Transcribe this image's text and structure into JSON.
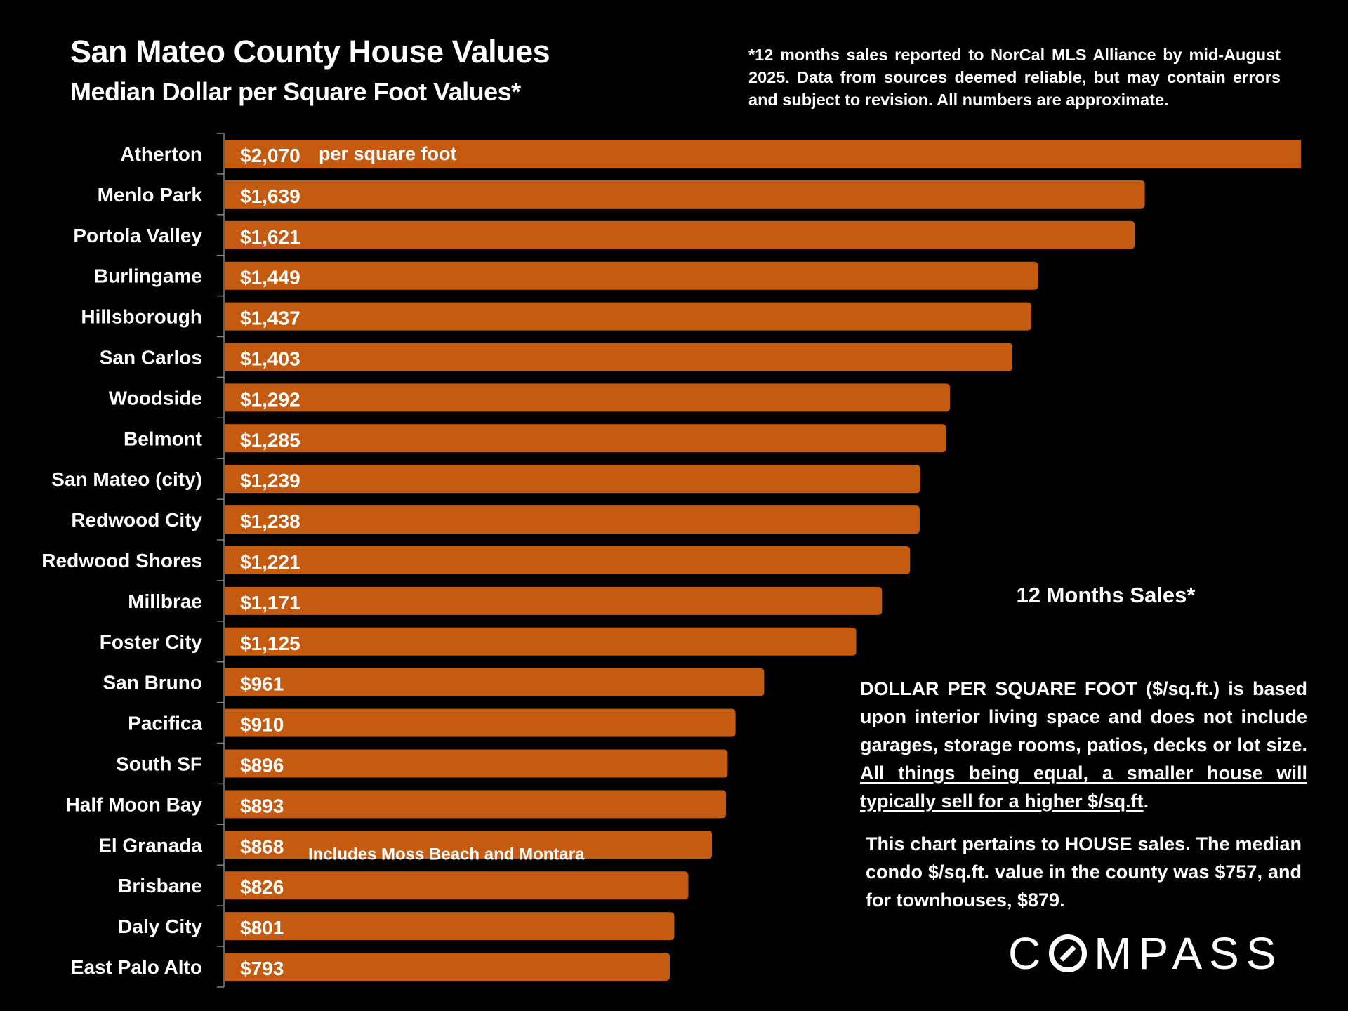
{
  "header": {
    "title": "San Mateo County House Values",
    "subtitle": "Median Dollar per Square Foot Values*",
    "footnote": "*12 months sales reported to NorCal MLS Alliance by mid-August 2025. Data from sources deemed reliable, but may contain errors and subject to revision. All numbers are approximate."
  },
  "colors": {
    "background": "#000000",
    "bar": "#C55A11",
    "axis": "#7F7F7F",
    "text": "#FFFFFF"
  },
  "chart_data": {
    "type": "bar",
    "orientation": "horizontal",
    "title": "San Mateo County House Values",
    "subtitle": "Median Dollar per Square Foot Values*",
    "xlabel": "",
    "ylabel": "",
    "grid": false,
    "unit": "$ per square foot",
    "categories": [
      "Atherton",
      "Menlo Park",
      "Portola Valley",
      "Burlingame",
      "Hillsborough",
      "San Carlos",
      "Woodside",
      "Belmont",
      "San Mateo (city)",
      "Redwood City",
      "Redwood Shores",
      "Millbrae",
      "Foster City",
      "San Bruno",
      "Pacifica",
      "South SF",
      "Half Moon Bay",
      "El Granada",
      "Brisbane",
      "Daly City",
      "East Palo Alto"
    ],
    "values": [
      2070,
      1639,
      1621,
      1449,
      1437,
      1403,
      1292,
      1285,
      1239,
      1238,
      1221,
      1171,
      1125,
      961,
      910,
      896,
      893,
      868,
      826,
      801,
      793
    ],
    "value_labels": [
      "$2,070",
      "$1,639",
      "$1,621",
      "$1,449",
      "$1,437",
      "$1,403",
      "$1,292",
      "$1,285",
      "$1,239",
      "$1,238",
      "$1,221",
      "$1,171",
      "$1,125",
      "$961",
      "$910",
      "$896",
      "$893",
      "$868",
      "$826",
      "$801",
      "$793"
    ],
    "xlim": [
      0,
      1900
    ],
    "truncated_bar": "Atherton",
    "annotations": [
      {
        "category": "Atherton",
        "text": "per square foot"
      },
      {
        "category": "El Granada",
        "text": "Includes Moss Beach and Montara"
      }
    ]
  },
  "side_panel": {
    "heading": "12 Months Sales*",
    "definition_plain": "DOLLAR PER SQUARE FOOT ($/sq.ft.) is based upon interior living space and does not include garages, storage rooms, patios, decks or lot size. ",
    "definition_underlined": "All things being equal, a smaller house will typically  sell for a higher $/sq.ft",
    "definition_end": ".",
    "house_note": "This chart pertains to HOUSE sales. The median condo $/sq.ft. value in the county was $757, and for townhouses, $879."
  },
  "logo": {
    "brand": "COMPASS",
    "before_o": "C",
    "after_o": "MPASS"
  }
}
